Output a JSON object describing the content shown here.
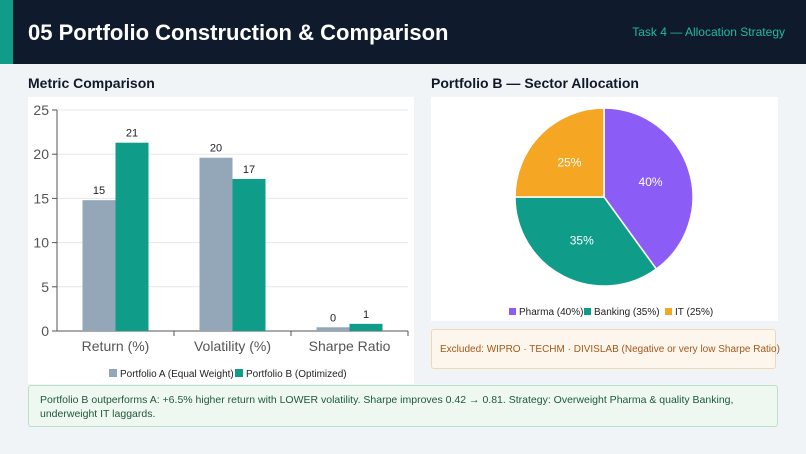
{
  "header": {
    "title": "05  Portfolio Construction & Comparison",
    "subtitle": "Task 4 — Allocation Strategy"
  },
  "colors": {
    "header_bg": "#0f1b2d",
    "accent": "#0f9d8a",
    "portfolio_a": "#94a7b9",
    "portfolio_b": "#0f9d8a",
    "pharma": "#8b5cf6",
    "banking": "#0f9d8a",
    "it": "#f5a623"
  },
  "metric_section": {
    "title": "Metric Comparison"
  },
  "allocation_section": {
    "title": "Portfolio B — Sector Allocation"
  },
  "chart_data": [
    {
      "type": "bar",
      "categories": [
        "Return (%)",
        "Volatility (%)",
        "Sharpe Ratio"
      ],
      "series": [
        {
          "name": "Portfolio A (Equal Weight)",
          "values": [
            14.8,
            19.6,
            0.42
          ],
          "labels": [
            "15",
            "20",
            "0"
          ]
        },
        {
          "name": "Portfolio B (Optimized)",
          "values": [
            21.3,
            17.2,
            0.81
          ],
          "labels": [
            "21",
            "17",
            "1"
          ]
        }
      ],
      "ylim": [
        0,
        25
      ],
      "yticks": [
        0,
        5,
        10,
        15,
        20,
        25
      ],
      "legend": "bottom",
      "grid": true
    },
    {
      "type": "pie",
      "slices": [
        {
          "label": "40%",
          "value": 40,
          "legend": "Pharma (40%)"
        },
        {
          "label": "35%",
          "value": 35,
          "legend": "Banking (35%)"
        },
        {
          "label": "25%",
          "value": 25,
          "legend": "IT (25%)"
        }
      ],
      "legend": "bottom"
    }
  ],
  "excluded": {
    "text": "Excluded: WIPRO · TECHM · DIVISLAB  (Negative or very low Sharpe Ratio)"
  },
  "summary": {
    "text": "Portfolio B outperforms A: +6.5% higher return with LOWER volatility. Sharpe improves 0.42 → 0.81. Strategy: Overweight Pharma & quality Banking, underweight IT laggards."
  }
}
